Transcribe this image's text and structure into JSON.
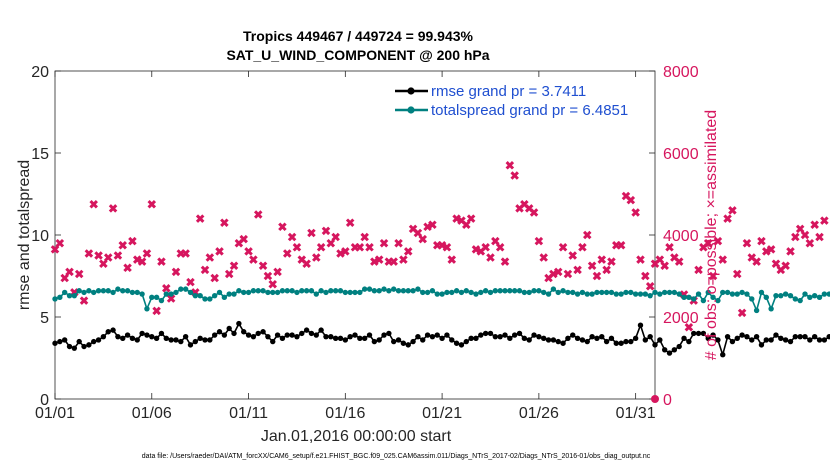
{
  "chart_data": {
    "type": "line",
    "title_line1": "Tropics 449467 / 449724 = 99.943%",
    "title_line2": "SAT_U_WIND_COMPONENT @ 200 hPa",
    "xlabel": "Jan.01,2016 00:00:00 start",
    "ylabel_left": "rmse and totalspread",
    "ylabel_right": "# of obs: o=possible; ×=assimilated",
    "x_tick_labels": [
      "01/01",
      "01/06",
      "01/11",
      "01/16",
      "01/21",
      "01/26",
      "01/31"
    ],
    "x_tick_days": [
      1,
      6,
      11,
      16,
      21,
      26,
      31
    ],
    "xlim": [
      1,
      32
    ],
    "ylim_left": [
      0,
      20
    ],
    "y_ticks_left": [
      "0",
      "5",
      "10",
      "15",
      "20"
    ],
    "ylim_right": [
      0,
      8000
    ],
    "y_ticks_right": [
      "0",
      "2000",
      "4000",
      "6000",
      "8000"
    ],
    "colors": {
      "rmse": "#000000",
      "totalspread": "#008080",
      "obs": "#d6165e",
      "legend_text": "#1f4fd0"
    },
    "series": [
      {
        "name": "rmse grand pr = 3.7411",
        "axis": "left",
        "x_start": 1.0,
        "x_step": 0.25,
        "values": [
          3.4,
          3.5,
          3.6,
          3.2,
          3.1,
          3.5,
          3.2,
          3.3,
          3.5,
          3.6,
          3.8,
          4.1,
          4.2,
          3.8,
          3.7,
          3.9,
          3.7,
          3.6,
          4.0,
          3.9,
          3.8,
          3.7,
          4.0,
          3.7,
          3.6,
          3.6,
          3.5,
          3.8,
          3.3,
          3.5,
          3.7,
          3.6,
          3.6,
          3.9,
          4.1,
          3.9,
          4.3,
          4.0,
          4.6,
          4.1,
          3.9,
          3.8,
          4.0,
          4.1,
          3.8,
          3.5,
          3.9,
          3.7,
          3.9,
          3.9,
          3.8,
          4.0,
          4.2,
          4.0,
          3.9,
          4.2,
          3.8,
          3.8,
          3.7,
          3.7,
          3.6,
          3.8,
          3.9,
          3.7,
          3.7,
          3.9,
          3.5,
          3.6,
          3.9,
          4.0,
          3.5,
          3.6,
          3.4,
          3.3,
          3.5,
          3.8,
          3.6,
          3.9,
          3.8,
          3.9,
          3.7,
          3.9,
          3.6,
          3.4,
          3.3,
          3.5,
          3.7,
          3.7,
          3.9,
          4.0,
          4.0,
          3.8,
          3.8,
          3.9,
          3.7,
          3.9,
          4.0,
          3.7,
          3.6,
          3.9,
          3.8,
          3.7,
          3.6,
          3.6,
          3.5,
          3.4,
          3.7,
          3.9,
          3.7,
          3.6,
          3.5,
          3.8,
          3.7,
          3.8,
          3.5,
          3.7,
          3.4,
          3.4,
          3.5,
          3.5,
          3.7,
          4.5,
          3.6,
          3.8,
          3.3,
          3.6,
          3.0,
          2.8,
          3.0,
          3.2,
          3.7,
          3.5,
          4.0,
          4.0,
          4.0,
          3.7,
          3.9,
          3.6,
          2.7,
          3.8,
          3.5,
          3.7,
          3.9,
          3.8,
          3.6,
          3.8,
          3.3,
          3.6,
          3.6,
          3.9,
          3.7,
          3.6,
          3.5,
          3.8,
          3.8,
          3.8,
          3.6,
          3.8,
          3.6,
          3.6,
          3.8,
          3.7
        ]
      },
      {
        "name": "totalspread grand pr = 6.4851",
        "axis": "left",
        "x_start": 1.0,
        "x_step": 0.25,
        "values": [
          6.1,
          6.2,
          6.5,
          6.3,
          6.3,
          6.6,
          6.5,
          6.6,
          6.5,
          6.6,
          6.6,
          6.6,
          6.5,
          6.7,
          6.6,
          6.6,
          6.5,
          6.5,
          6.4,
          5.5,
          6.2,
          6.2,
          6.0,
          6.4,
          6.4,
          6.5,
          6.7,
          6.7,
          6.5,
          6.3,
          6.3,
          6.1,
          6.1,
          6.3,
          6.5,
          6.2,
          6.4,
          6.4,
          6.6,
          6.5,
          6.5,
          6.6,
          6.6,
          6.6,
          6.5,
          6.5,
          6.5,
          6.6,
          6.6,
          6.6,
          6.5,
          6.6,
          6.6,
          6.6,
          6.4,
          6.6,
          6.5,
          6.6,
          6.6,
          6.6,
          6.5,
          6.5,
          6.5,
          6.5,
          6.7,
          6.7,
          6.6,
          6.6,
          6.7,
          6.6,
          6.7,
          6.6,
          6.6,
          6.6,
          6.6,
          6.7,
          6.5,
          6.5,
          6.6,
          6.4,
          6.4,
          6.5,
          6.5,
          6.6,
          6.5,
          6.6,
          6.5,
          6.4,
          6.5,
          6.6,
          6.5,
          6.6,
          6.6,
          6.6,
          6.6,
          6.6,
          6.6,
          6.5,
          6.5,
          6.6,
          6.6,
          6.5,
          6.4,
          6.7,
          6.5,
          6.6,
          6.5,
          6.5,
          6.4,
          6.5,
          6.4,
          6.4,
          6.5,
          6.5,
          6.5,
          6.5,
          6.4,
          6.4,
          6.5,
          6.5,
          6.4,
          6.4,
          6.4,
          6.3,
          6.5,
          6.4,
          6.5,
          6.5,
          6.5,
          6.4,
          6.2,
          6.2,
          6.1,
          6.4,
          6.0,
          6.5,
          6.2,
          6.0,
          6.5,
          6.5,
          6.4,
          6.4,
          6.5,
          6.4,
          6.1,
          5.4,
          6.5,
          6.2,
          5.5,
          6.3,
          6.3,
          6.4,
          6.3,
          6.1,
          6.0,
          6.4,
          6.2,
          6.3,
          6.2,
          6.4,
          6.4,
          6.3
        ]
      },
      {
        "name": "observations assimilated",
        "axis": "right",
        "x_start": 1.0,
        "x_step": 0.25,
        "values": [
          3650,
          3800,
          2950,
          3100,
          2600,
          3050,
          2400,
          3550,
          4750,
          3500,
          3300,
          3450,
          4650,
          3500,
          3750,
          3200,
          3850,
          3400,
          3350,
          3550,
          4750,
          2150,
          3350,
          2700,
          2450,
          3100,
          3550,
          3550,
          2850,
          2600,
          4400,
          3150,
          3450,
          2950,
          3600,
          4300,
          3050,
          3250,
          3800,
          3900,
          3600,
          3400,
          4500,
          3250,
          3000,
          2800,
          3100,
          4200,
          3550,
          3950,
          3700,
          3400,
          3300,
          4050,
          3450,
          3700,
          4100,
          3800,
          3950,
          3550,
          3600,
          4300,
          3700,
          3700,
          3950,
          3700,
          3350,
          3400,
          3800,
          3350,
          3350,
          3800,
          3400,
          3600,
          4150,
          4050,
          3900,
          4200,
          4250,
          3750,
          3750,
          3700,
          3400,
          4400,
          4350,
          4250,
          4400,
          3650,
          3600,
          3700,
          3450,
          3850,
          3700,
          3350,
          5700,
          5450,
          4650,
          4750,
          4650,
          4550,
          3850,
          3450,
          2950,
          3050,
          3100,
          3700,
          3050,
          3500,
          3150,
          3700,
          4000,
          3250,
          3000,
          3400,
          3150,
          3350,
          3750,
          3750,
          4950,
          4850,
          4550,
          3400,
          3000,
          2750,
          3300,
          3400,
          3250,
          3700,
          3450,
          3350,
          2550,
          1750,
          2400,
          3150,
          3700,
          3800,
          3000,
          3850,
          3400,
          4400,
          4600,
          3050,
          2100,
          3800,
          3450,
          3350,
          3850,
          3600,
          3650,
          3300,
          3150,
          3250,
          3600,
          3950,
          4150,
          4000,
          3800,
          4250,
          3950,
          4350
        ],
        "marker": "x"
      },
      {
        "name": "observations possible",
        "axis": "right",
        "x_start": 32.0,
        "x_step": 0.25,
        "values": [
          0
        ],
        "marker": "o"
      }
    ],
    "legend_placement": "top-right",
    "footnote": "data file: /Users/raeder/DAI/ATM_forcXX/CAM6_setup/f.e21.FHIST_BGC.f09_025.CAM6assim.011/Diags_NTrS_2017-02/Diags_NTrS_2016-01/obs_diag_output.nc"
  }
}
